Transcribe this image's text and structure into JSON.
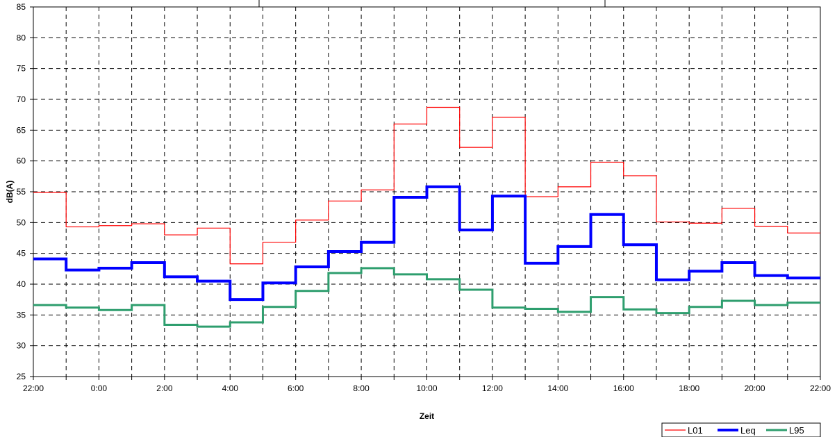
{
  "chart_data": {
    "type": "line",
    "step": true,
    "title": "",
    "xlabel": "Zeit",
    "ylabel": "dB(A)",
    "ylim": [
      25,
      85
    ],
    "yticks": [
      25,
      30,
      35,
      40,
      45,
      50,
      55,
      60,
      65,
      70,
      75,
      80,
      85
    ],
    "xlim": [
      0,
      24
    ],
    "xticks": [
      {
        "at": 0,
        "label": "22:00"
      },
      {
        "at": 2,
        "label": "0:00"
      },
      {
        "at": 4,
        "label": "2:00"
      },
      {
        "at": 6,
        "label": "4:00"
      },
      {
        "at": 8,
        "label": "6:00"
      },
      {
        "at": 10,
        "label": "8:00"
      },
      {
        "at": 12,
        "label": "10:00"
      },
      {
        "at": 14,
        "label": "12:00"
      },
      {
        "at": 16,
        "label": "14:00"
      },
      {
        "at": 18,
        "label": "16:00"
      },
      {
        "at": 20,
        "label": "18:00"
      },
      {
        "at": 22,
        "label": "20:00"
      },
      {
        "at": 24,
        "label": "22:00"
      }
    ],
    "grid": true,
    "legend_position": "bottom-right",
    "series": [
      {
        "name": "L01",
        "color": "#ff0000",
        "width": 1.2,
        "values": [
          54.9,
          49.3,
          49.5,
          49.8,
          48.0,
          49.1,
          43.3,
          46.8,
          50.4,
          53.5,
          55.3,
          66.0,
          68.7,
          62.2,
          67.1,
          54.2,
          55.8,
          59.8,
          57.6,
          50.1,
          49.9,
          52.3,
          49.4,
          48.3
        ]
      },
      {
        "name": "Leq",
        "color": "#0000ff",
        "width": 4,
        "values": [
          44.1,
          42.3,
          42.6,
          43.5,
          41.2,
          40.5,
          37.5,
          40.2,
          42.8,
          45.3,
          46.8,
          54.1,
          55.8,
          48.8,
          54.3,
          43.4,
          46.1,
          51.3,
          46.4,
          40.7,
          42.1,
          43.5,
          41.4,
          41.0
        ]
      },
      {
        "name": "L95",
        "color": "#2e9e6e",
        "width": 3,
        "values": [
          36.6,
          36.2,
          35.8,
          36.6,
          33.4,
          33.1,
          33.8,
          36.3,
          38.9,
          41.8,
          42.6,
          41.6,
          40.8,
          39.1,
          36.2,
          36.0,
          35.5,
          37.9,
          35.9,
          35.3,
          36.3,
          37.3,
          36.6,
          37.0
        ]
      }
    ]
  }
}
